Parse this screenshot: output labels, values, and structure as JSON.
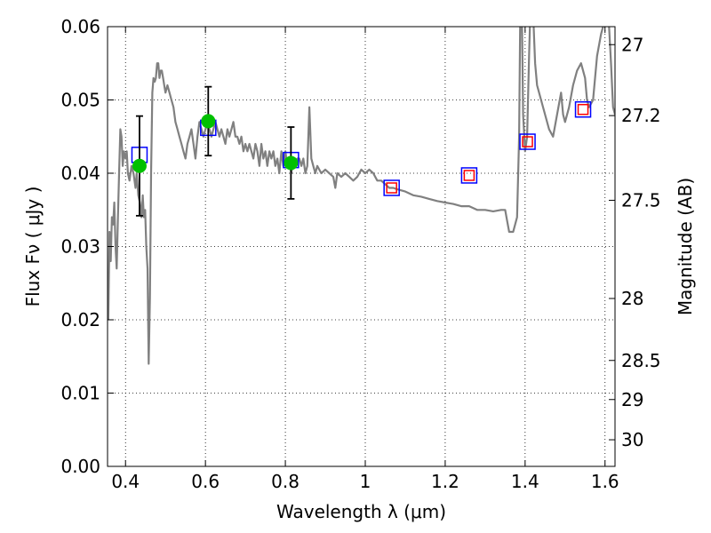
{
  "chart_data": {
    "type": "scatter",
    "title": "",
    "xlabel": "Wavelength  λ (μm)",
    "ylabel": "Flux  Fν  ( μJy )",
    "y2label": "Magnitude (AB)",
    "xlim": [
      0.355,
      1.625
    ],
    "ylim": [
      0.0,
      0.06
    ],
    "grid": true,
    "x_ticks": [
      0.4,
      0.6,
      0.8,
      1.0,
      1.2,
      1.4,
      1.6
    ],
    "x_tick_labels": [
      "0.4",
      "0.6",
      "0.8",
      "1",
      "1.2",
      "1.4",
      "1.6"
    ],
    "y_ticks": [
      0.0,
      0.01,
      0.02,
      0.03,
      0.04,
      0.05,
      0.06
    ],
    "y_tick_labels": [
      "0.00",
      "0.01",
      "0.02",
      "0.03",
      "0.04",
      "0.05",
      "0.06"
    ],
    "y2_ticks": [
      {
        "mag": 27,
        "label": "27"
      },
      {
        "mag": 27.2,
        "label": "27.2"
      },
      {
        "mag": 27.5,
        "label": "27.5"
      },
      {
        "mag": 28,
        "label": "28"
      },
      {
        "mag": 28.5,
        "label": "28.5"
      },
      {
        "mag": 29,
        "label": "29"
      },
      {
        "mag": 30,
        "label": "30"
      }
    ],
    "series": [
      {
        "kind": "line",
        "color": "#808080",
        "points": [
          [
            0.357,
            0.02
          ],
          [
            0.36,
            0.032
          ],
          [
            0.363,
            0.028
          ],
          [
            0.366,
            0.034
          ],
          [
            0.369,
            0.033
          ],
          [
            0.372,
            0.036
          ],
          [
            0.375,
            0.03
          ],
          [
            0.378,
            0.027
          ],
          [
            0.381,
            0.034
          ],
          [
            0.384,
            0.04
          ],
          [
            0.387,
            0.046
          ],
          [
            0.39,
            0.045
          ],
          [
            0.393,
            0.041
          ],
          [
            0.396,
            0.043
          ],
          [
            0.4,
            0.042
          ],
          [
            0.403,
            0.043
          ],
          [
            0.406,
            0.04
          ],
          [
            0.41,
            0.039
          ],
          [
            0.415,
            0.041
          ],
          [
            0.42,
            0.04
          ],
          [
            0.425,
            0.038
          ],
          [
            0.428,
            0.04
          ],
          [
            0.432,
            0.037
          ],
          [
            0.436,
            0.036
          ],
          [
            0.44,
            0.034
          ],
          [
            0.443,
            0.037
          ],
          [
            0.446,
            0.034
          ],
          [
            0.449,
            0.035
          ],
          [
            0.452,
            0.03
          ],
          [
            0.455,
            0.027
          ],
          [
            0.458,
            0.014
          ],
          [
            0.461,
            0.023
          ],
          [
            0.464,
            0.04
          ],
          [
            0.467,
            0.051
          ],
          [
            0.47,
            0.053
          ],
          [
            0.473,
            0.0525
          ],
          [
            0.476,
            0.053
          ],
          [
            0.479,
            0.055
          ],
          [
            0.482,
            0.055
          ],
          [
            0.485,
            0.053
          ],
          [
            0.488,
            0.054
          ],
          [
            0.491,
            0.054
          ],
          [
            0.494,
            0.053
          ],
          [
            0.497,
            0.052
          ],
          [
            0.5,
            0.051
          ],
          [
            0.505,
            0.052
          ],
          [
            0.51,
            0.051
          ],
          [
            0.515,
            0.05
          ],
          [
            0.52,
            0.049
          ],
          [
            0.525,
            0.047
          ],
          [
            0.53,
            0.046
          ],
          [
            0.535,
            0.045
          ],
          [
            0.54,
            0.044
          ],
          [
            0.545,
            0.043
          ],
          [
            0.55,
            0.042
          ],
          [
            0.555,
            0.044
          ],
          [
            0.56,
            0.045
          ],
          [
            0.565,
            0.046
          ],
          [
            0.57,
            0.044
          ],
          [
            0.575,
            0.042
          ],
          [
            0.58,
            0.045
          ],
          [
            0.585,
            0.047
          ],
          [
            0.59,
            0.046
          ],
          [
            0.595,
            0.045
          ],
          [
            0.6,
            0.046
          ],
          [
            0.605,
            0.047
          ],
          [
            0.61,
            0.046
          ],
          [
            0.615,
            0.045
          ],
          [
            0.62,
            0.046
          ],
          [
            0.625,
            0.047
          ],
          [
            0.63,
            0.046
          ],
          [
            0.635,
            0.045
          ],
          [
            0.64,
            0.046
          ],
          [
            0.645,
            0.045
          ],
          [
            0.65,
            0.044
          ],
          [
            0.655,
            0.046
          ],
          [
            0.66,
            0.045
          ],
          [
            0.665,
            0.046
          ],
          [
            0.67,
            0.047
          ],
          [
            0.675,
            0.045
          ],
          [
            0.68,
            0.045
          ],
          [
            0.685,
            0.044
          ],
          [
            0.69,
            0.045
          ],
          [
            0.695,
            0.043
          ],
          [
            0.7,
            0.044
          ],
          [
            0.705,
            0.043
          ],
          [
            0.71,
            0.044
          ],
          [
            0.715,
            0.043
          ],
          [
            0.72,
            0.042
          ],
          [
            0.725,
            0.044
          ],
          [
            0.73,
            0.043
          ],
          [
            0.735,
            0.041
          ],
          [
            0.74,
            0.044
          ],
          [
            0.745,
            0.042
          ],
          [
            0.75,
            0.043
          ],
          [
            0.755,
            0.041
          ],
          [
            0.76,
            0.043
          ],
          [
            0.765,
            0.042
          ],
          [
            0.77,
            0.043
          ],
          [
            0.775,
            0.041
          ],
          [
            0.78,
            0.042
          ],
          [
            0.785,
            0.04
          ],
          [
            0.79,
            0.043
          ],
          [
            0.795,
            0.041
          ],
          [
            0.8,
            0.043
          ],
          [
            0.805,
            0.041
          ],
          [
            0.81,
            0.042
          ],
          [
            0.815,
            0.04
          ],
          [
            0.82,
            0.042
          ],
          [
            0.825,
            0.041
          ],
          [
            0.83,
            0.042
          ],
          [
            0.835,
            0.042
          ],
          [
            0.84,
            0.041
          ],
          [
            0.845,
            0.042
          ],
          [
            0.85,
            0.04
          ],
          [
            0.855,
            0.041
          ],
          [
            0.86,
            0.049
          ],
          [
            0.865,
            0.042
          ],
          [
            0.87,
            0.041
          ],
          [
            0.875,
            0.04
          ],
          [
            0.88,
            0.041
          ],
          [
            0.89,
            0.04
          ],
          [
            0.9,
            0.0405
          ],
          [
            0.91,
            0.04
          ],
          [
            0.92,
            0.0395
          ],
          [
            0.925,
            0.038
          ],
          [
            0.93,
            0.04
          ],
          [
            0.94,
            0.0395
          ],
          [
            0.95,
            0.04
          ],
          [
            0.96,
            0.0395
          ],
          [
            0.97,
            0.039
          ],
          [
            0.98,
            0.0395
          ],
          [
            0.99,
            0.0405
          ],
          [
            1.0,
            0.04
          ],
          [
            1.01,
            0.0405
          ],
          [
            1.02,
            0.04
          ],
          [
            1.03,
            0.039
          ],
          [
            1.04,
            0.039
          ],
          [
            1.05,
            0.0385
          ],
          [
            1.06,
            0.038
          ],
          [
            1.07,
            0.038
          ],
          [
            1.08,
            0.0378
          ],
          [
            1.1,
            0.0375
          ],
          [
            1.12,
            0.037
          ],
          [
            1.14,
            0.0368
          ],
          [
            1.16,
            0.0365
          ],
          [
            1.18,
            0.0362
          ],
          [
            1.2,
            0.036
          ],
          [
            1.22,
            0.0358
          ],
          [
            1.24,
            0.0355
          ],
          [
            1.26,
            0.0355
          ],
          [
            1.28,
            0.035
          ],
          [
            1.3,
            0.035
          ],
          [
            1.32,
            0.0348
          ],
          [
            1.34,
            0.035
          ],
          [
            1.35,
            0.035
          ],
          [
            1.355,
            0.0335
          ],
          [
            1.36,
            0.032
          ],
          [
            1.37,
            0.032
          ],
          [
            1.38,
            0.034
          ],
          [
            1.385,
            0.045
          ],
          [
            1.388,
            0.062
          ],
          [
            1.392,
            0.062
          ],
          [
            1.395,
            0.048
          ],
          [
            1.4,
            0.043
          ],
          [
            1.405,
            0.045
          ],
          [
            1.41,
            0.056
          ],
          [
            1.413,
            0.062
          ],
          [
            1.42,
            0.062
          ],
          [
            1.425,
            0.055
          ],
          [
            1.43,
            0.052
          ],
          [
            1.44,
            0.05
          ],
          [
            1.45,
            0.048
          ],
          [
            1.46,
            0.046
          ],
          [
            1.47,
            0.045
          ],
          [
            1.48,
            0.048
          ],
          [
            1.49,
            0.051
          ],
          [
            1.495,
            0.048
          ],
          [
            1.5,
            0.047
          ],
          [
            1.51,
            0.049
          ],
          [
            1.52,
            0.052
          ],
          [
            1.53,
            0.054
          ],
          [
            1.54,
            0.055
          ],
          [
            1.55,
            0.053
          ],
          [
            1.555,
            0.05
          ],
          [
            1.56,
            0.049
          ],
          [
            1.57,
            0.05
          ],
          [
            1.58,
            0.056
          ],
          [
            1.59,
            0.059
          ],
          [
            1.6,
            0.061
          ],
          [
            1.61,
            0.06
          ],
          [
            1.615,
            0.055
          ],
          [
            1.62,
            0.049
          ],
          [
            1.625,
            0.048
          ]
        ]
      },
      {
        "kind": "square",
        "color": "#0000ff",
        "points": [
          [
            0.435,
            0.0425
          ],
          [
            0.607,
            0.0462
          ],
          [
            0.814,
            0.0418
          ],
          [
            1.066,
            0.038
          ],
          [
            1.26,
            0.0397
          ],
          [
            1.406,
            0.0443
          ],
          [
            1.545,
            0.0487
          ]
        ]
      },
      {
        "kind": "square",
        "color": "#ff0000",
        "points": [
          [
            1.066,
            0.038
          ],
          [
            1.26,
            0.0397
          ],
          [
            1.406,
            0.0443
          ],
          [
            1.545,
            0.0487
          ]
        ]
      },
      {
        "kind": "circle",
        "color": "#00c000",
        "points": [
          [
            0.435,
            0.041
          ],
          [
            0.607,
            0.0471
          ],
          [
            0.814,
            0.0414
          ]
        ],
        "yerr": [
          0.0068,
          0.0047,
          0.0049
        ]
      }
    ]
  }
}
